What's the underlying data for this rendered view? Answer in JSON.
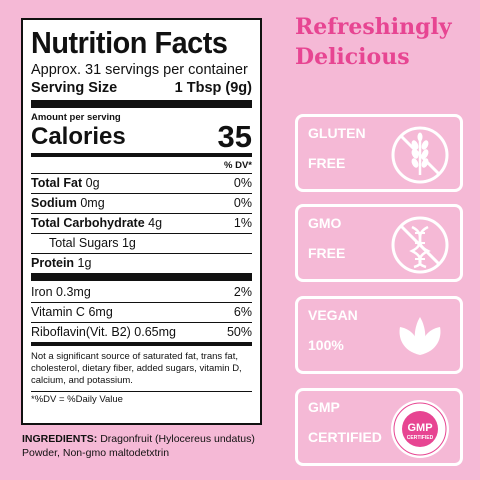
{
  "label": {
    "title": "Nutrition Facts",
    "servings": "Approx. 31 servings per container",
    "serving_size_label": "Serving Size",
    "serving_size_value": "1 Tbsp (9g)",
    "amount_per_serving": "Amount per serving",
    "calories_label": "Calories",
    "calories_value": "35",
    "dv_header": "% DV*",
    "nutrients": [
      {
        "name": "Total Fat",
        "amount": "0g",
        "dv": "0%"
      },
      {
        "name": "Sodium",
        "amount": "0mg",
        "dv": "0%"
      },
      {
        "name": "Total Carbohydrate",
        "amount": "4g",
        "dv": "1%"
      },
      {
        "name": "Total Sugars",
        "amount": "1g",
        "dv": ""
      },
      {
        "name": "Protein",
        "amount": "1g",
        "dv": ""
      }
    ],
    "vitamins": [
      {
        "name": "Iron",
        "amount": "0.3mg",
        "dv": "2%"
      },
      {
        "name": "Vitamin C",
        "amount": "6mg",
        "dv": "6%"
      },
      {
        "name": "Riboflavin(Vit. B2)",
        "amount": "0.65mg",
        "dv": "50%"
      }
    ],
    "footnote": "Not a significant source of saturated fat, trans fat, cholesterol, dietary fiber, added sugars, vitamin D, calcium, and potassium.",
    "dv_note": "*%DV = %Daily Value"
  },
  "ingredients": {
    "label": "INGREDIENTS:",
    "text": "Dragonfruit (Hylocereus undatus) Powder, Non-gmo maltodetxtrin"
  },
  "headline": {
    "line1": "Refreshingly",
    "line2": "Delicious"
  },
  "badges": [
    {
      "line1": "GLUTEN",
      "line2": "FREE",
      "icon": "wheat-crossed-icon"
    },
    {
      "line1": "GMO",
      "line2": "FREE",
      "icon": "dna-crossed-icon"
    },
    {
      "line1": "VEGAN",
      "line2": "100%",
      "icon": "leaf-icon"
    },
    {
      "line1": "GMP",
      "line2": "CERTIFIED",
      "icon": "gmp-seal-icon"
    }
  ],
  "gmp_seal": {
    "text": "GMP",
    "sub": "CERTIFIED"
  },
  "colors": {
    "background": "#f5b9d6",
    "accent": "#e74592",
    "badge_text": "#ffffff"
  }
}
